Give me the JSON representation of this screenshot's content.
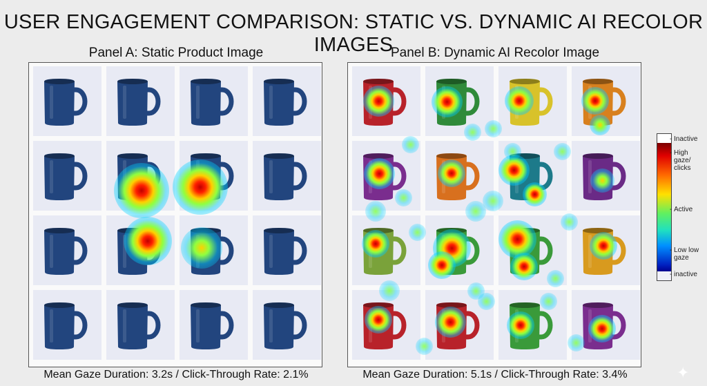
{
  "title": "USER ENGAGEMENT COMPARISON: STATIC VS. DYNAMIC AI RECOLOR IMAGES",
  "panel_a": {
    "title": "Panel A: Static Product Image",
    "stats": "Mean Gaze Duration: 3.2s / Click-Through Rate: 2.1%",
    "mug_colors": [
      "#22457e",
      "#22457e",
      "#22457e",
      "#22457e",
      "#22457e",
      "#22457e",
      "#22457e",
      "#22457e",
      "#22457e",
      "#22457e",
      "#22457e",
      "#22457e",
      "#22457e",
      "#22457e",
      "#22457e",
      "#22457e"
    ]
  },
  "panel_b": {
    "title": "Panel B: Dynamic AI Recolor Image",
    "stats": "Mean Gaze Duration: 5.1s / Click-Through Rate: 3.4%",
    "mug_colors": [
      "#b8222a",
      "#2f8a3a",
      "#d8c22a",
      "#d8801e",
      "#7a2d8e",
      "#d8701e",
      "#1d7a8a",
      "#6a2a86",
      "#7aa23a",
      "#3a9a3a",
      "#3a9a3a",
      "#d89a1e",
      "#b8222a",
      "#b8222a",
      "#3a9a3a",
      "#7a2d8e"
    ]
  },
  "legend": {
    "top": "Inactive",
    "high": "High gaze/ clicks",
    "active": "Active",
    "low": "Low low gaze",
    "bottom": "inactive"
  }
}
